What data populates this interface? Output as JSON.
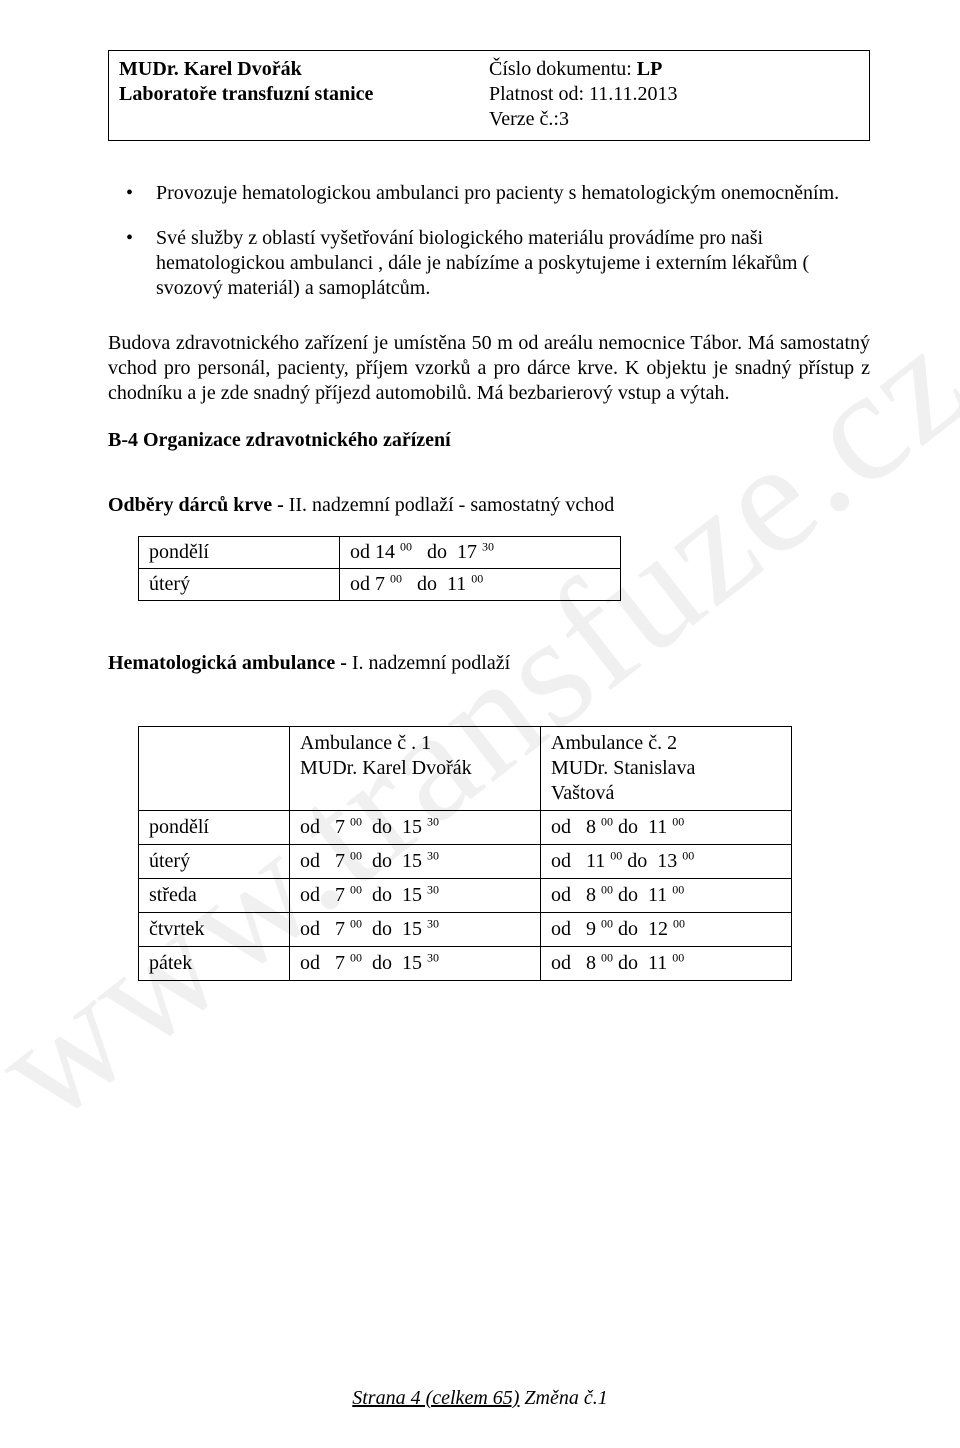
{
  "watermark": "www.transfuze.cz",
  "header": {
    "left_line1": "MUDr. Karel Dvořák",
    "left_line2": "Laboratoře transfuzní stanice",
    "right_line1_label": "Číslo dokumentu: ",
    "right_line1_value": "LP",
    "right_line2": "Platnost od: 11.11.2013",
    "right_line3": "Verze č.:3"
  },
  "bullets": [
    "Provozuje hematologickou ambulanci pro pacienty s hematologickým onemocněním.",
    "Své služby z oblastí vyšetřování biologického materiálu  provádíme pro naši hematologickou ambulanci , dále je  nabízíme a poskytujeme i externím lékařům ( svozový materiál) a samoplátcům."
  ],
  "paragraph": "Budova zdravotnického zařízení je umístěna 50 m od areálu nemocnice Tábor. Má samostatný vchod pro personál, pacienty, příjem vzorků a pro dárce krve.  K objektu je snadný přístup z chodníku a je zde snadný příjezd automobilů. Má bezbarierový vstup a výtah.",
  "section_title": "B-4  Organizace zdravotnického zařízení",
  "donors_heading_bold": "Odběry dárců krve  -",
  "donors_heading_rest": "  II. nadzemní podlaží  - samostatný vchod",
  "donors_table": {
    "rows": [
      {
        "day": "pondělí",
        "from_h": "14",
        "from_m": "00",
        "to_h": "17",
        "to_m": "30"
      },
      {
        "day": "úterý",
        "from_h": "7",
        "from_m": "00",
        "to_h": "11",
        "to_m": "00"
      }
    ]
  },
  "amb_heading_bold": "Hematologická ambulance - ",
  "amb_heading_rest": "I. nadzemní podlaží",
  "amb_table": {
    "head": {
      "col1_line1": "Ambulance č . 1",
      "col1_line2": "MUDr. Karel Dvořák",
      "col2_line1": "Ambulance č. 2",
      "col2_line2": "MUDr. Stanislava",
      "col2_line3": "Vaštová"
    },
    "rows": [
      {
        "day": "pondělí",
        "a1_from_h": "7",
        "a1_from_m": "00",
        "a1_to_h": "15",
        "a1_to_m": "30",
        "a2_from_h": "8",
        "a2_from_m": "00",
        "a2_to_h": "11",
        "a2_to_m": "00"
      },
      {
        "day": "úterý",
        "a1_from_h": "7",
        "a1_from_m": "00",
        "a1_to_h": "15",
        "a1_to_m": "30",
        "a2_from_h": "11",
        "a2_from_m": "00",
        "a2_to_h": "13",
        "a2_to_m": "00"
      },
      {
        "day": "středa",
        "a1_from_h": "7",
        "a1_from_m": "00",
        "a1_to_h": "15",
        "a1_to_m": "30",
        "a2_from_h": "8",
        "a2_from_m": "00",
        "a2_to_h": "11",
        "a2_to_m": "00"
      },
      {
        "day": "čtvrtek",
        "a1_from_h": "7",
        "a1_from_m": "00",
        "a1_to_h": "15",
        "a1_to_m": "30",
        "a2_from_h": "9",
        "a2_from_m": "00",
        "a2_to_h": "12",
        "a2_to_m": "00"
      },
      {
        "day": "pátek",
        "a1_from_h": "7",
        "a1_from_m": "00",
        "a1_to_h": "15",
        "a1_to_m": "30",
        "a2_from_h": "8",
        "a2_from_m": "00",
        "a2_to_h": "11",
        "a2_to_m": "00"
      }
    ]
  },
  "footer": {
    "text_underline": "Strana 4 (celkem 65)",
    "text_rest": " Změna č.1"
  }
}
